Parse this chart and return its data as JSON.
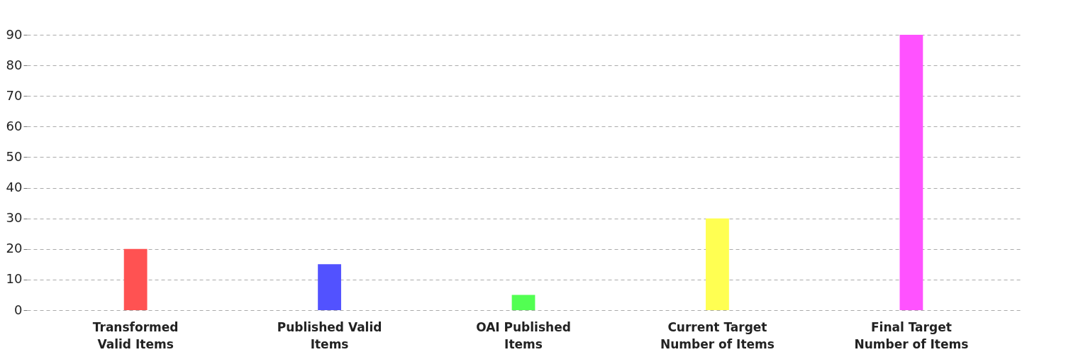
{
  "chart_data": {
    "type": "bar",
    "categories": [
      "Transformed Valid Items",
      "Published Valid Items",
      "OAI Published Items",
      "Current Target Number of Items",
      "Final Target Number of Items"
    ],
    "values": [
      20,
      15,
      5,
      30,
      90
    ],
    "colors": [
      "#ff5252",
      "#5252ff",
      "#52ff52",
      "#ffff52",
      "#ff52ff"
    ],
    "ylim": [
      0,
      90
    ],
    "yticks": [
      0,
      10,
      20,
      30,
      40,
      50,
      60,
      70,
      80,
      90
    ],
    "grid": "y"
  }
}
